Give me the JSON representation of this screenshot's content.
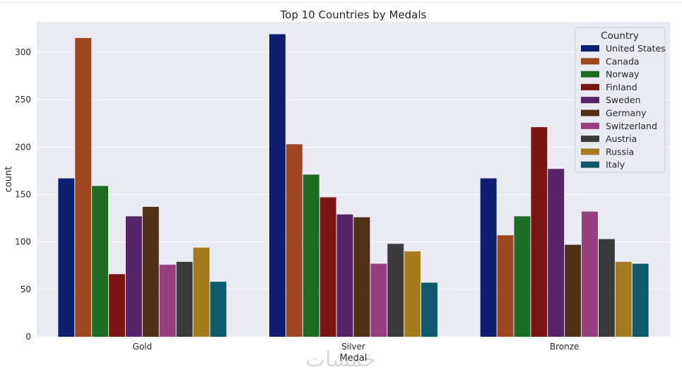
{
  "chart_data": {
    "type": "bar",
    "title": "Top 10 Countries by Medals",
    "xlabel": "Medal",
    "ylabel": "count",
    "categories": [
      "Gold",
      "Silver",
      "Bronze"
    ],
    "ylim": [
      0,
      332
    ],
    "yticks": [
      0,
      50,
      100,
      150,
      200,
      250,
      300
    ],
    "grid": true,
    "legend": {
      "title": "Country",
      "placement": "top-right"
    },
    "series": [
      {
        "name": "United States",
        "color": "#0e1f6f",
        "values": [
          167,
          319,
          167
        ]
      },
      {
        "name": "Canada",
        "color": "#9c4720",
        "values": [
          315,
          203,
          107
        ]
      },
      {
        "name": "Norway",
        "color": "#1e6b24",
        "values": [
          159,
          171,
          127
        ]
      },
      {
        "name": "Finland",
        "color": "#7b1513",
        "values": [
          66,
          147,
          221
        ]
      },
      {
        "name": "Sweden",
        "color": "#562469",
        "values": [
          127,
          129,
          177
        ]
      },
      {
        "name": "Germany",
        "color": "#502f17",
        "values": [
          137,
          126,
          97
        ]
      },
      {
        "name": "Switzerland",
        "color": "#983f7f",
        "values": [
          76,
          77,
          132
        ]
      },
      {
        "name": "Austria",
        "color": "#3a3a3a",
        "values": [
          79,
          98,
          103
        ]
      },
      {
        "name": "Russia",
        "color": "#a37d1d",
        "values": [
          94,
          90,
          79
        ]
      },
      {
        "name": "Italy",
        "color": "#0e5a6a",
        "values": [
          58,
          57,
          77
        ]
      }
    ]
  },
  "watermark": {
    "text": "خمسات"
  }
}
